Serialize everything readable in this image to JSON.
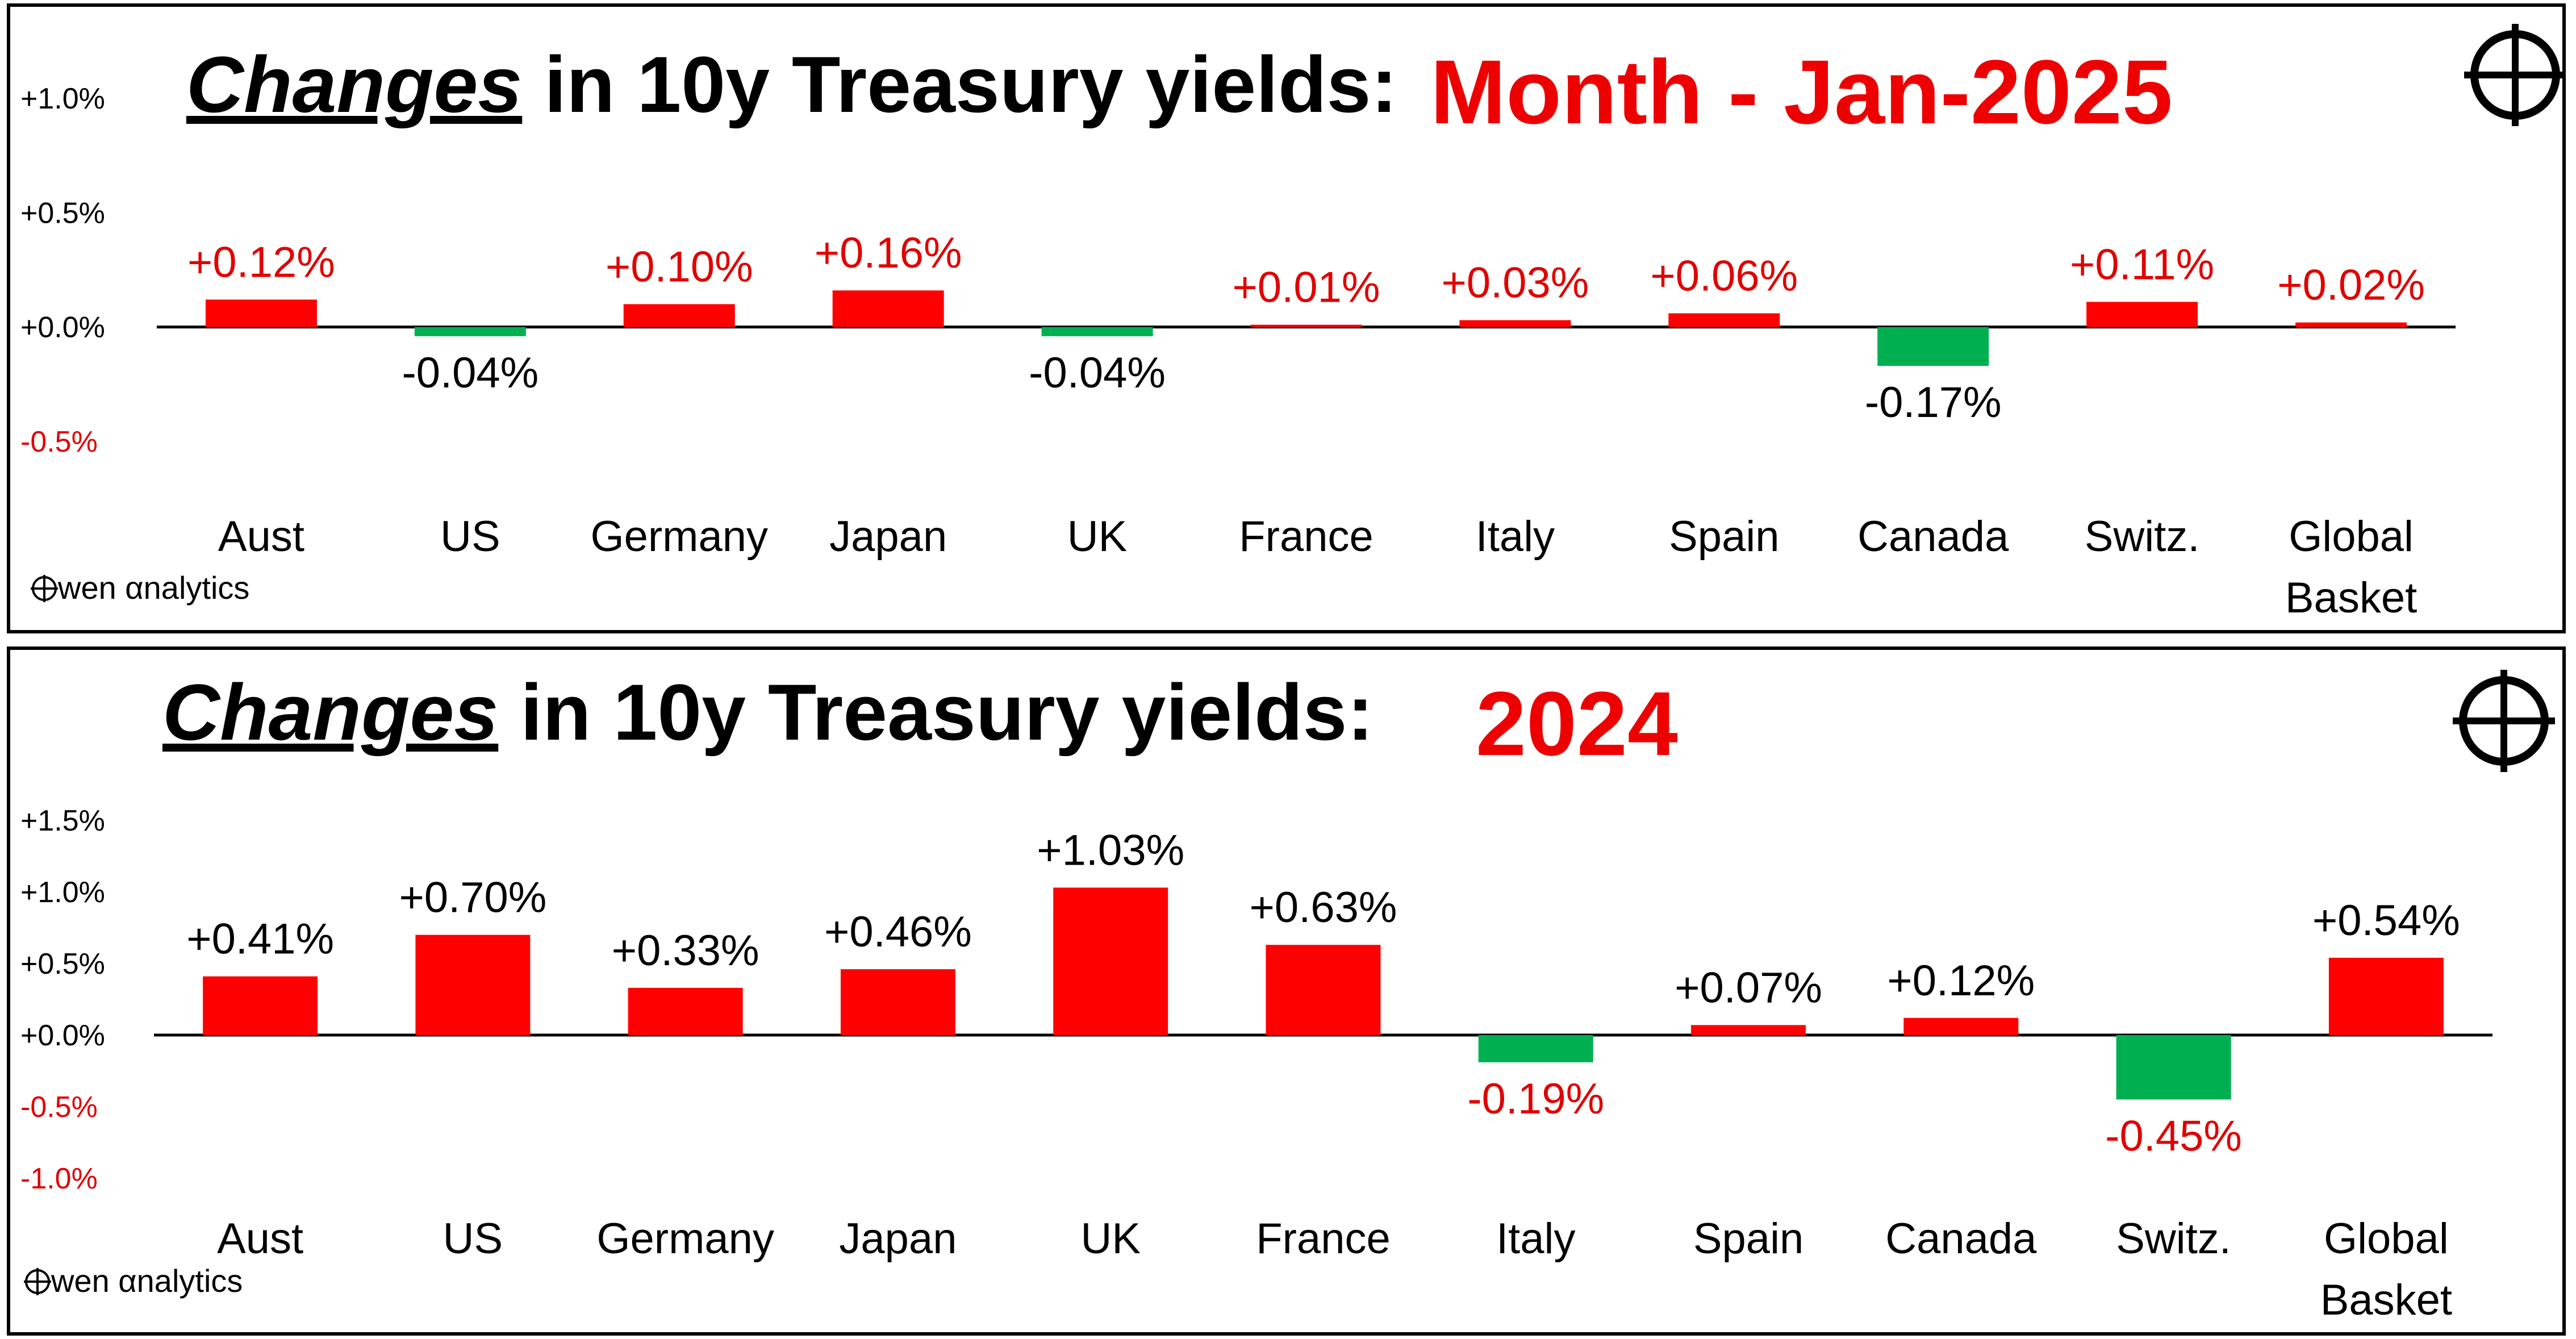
{
  "colors": {
    "positive": "#ff0000",
    "negative": "#00b050",
    "red_text": "#e00000",
    "axis": "#000000"
  },
  "brand": {
    "logo_icon": "crosshair-icon",
    "text": "wen αnalytics"
  },
  "chart_data": [
    {
      "type": "bar",
      "title_prefix": "Changes",
      "title_rest": " in 10y Treasury yields:",
      "period_label": "Month -  Jan-2025",
      "categories": [
        "Aust",
        "US",
        "Germany",
        "Japan",
        "UK",
        "France",
        "Italy",
        "Spain",
        "Canada",
        "Switz.",
        [
          "Global",
          "Basket"
        ]
      ],
      "values": [
        0.12,
        -0.04,
        0.1,
        0.16,
        -0.04,
        0.01,
        0.03,
        0.06,
        -0.17,
        0.11,
        0.02
      ],
      "data_labels": [
        "+0.12%",
        "-0.04%",
        "+0.10%",
        "+0.16%",
        "-0.04%",
        "+0.01%",
        "+0.03%",
        "+0.06%",
        "-0.17%",
        "+0.11%",
        "+0.02%"
      ],
      "label_colors": [
        "red",
        "black",
        "red",
        "red",
        "black",
        "red",
        "red",
        "red",
        "black",
        "red",
        "red"
      ],
      "y_ticks": [
        "+1.0%",
        "+0.5%",
        "+0.0%",
        "-0.5%"
      ],
      "y_tick_values": [
        1.0,
        0.5,
        0.0,
        -0.5
      ],
      "y_tick_colors": [
        "black",
        "black",
        "black",
        "red"
      ],
      "ylim": [
        -0.5,
        1.0
      ],
      "grid": false,
      "legend": "none"
    },
    {
      "type": "bar",
      "title_prefix": "Changes",
      "title_rest": " in 10y Treasury yields:",
      "period_label": "2024",
      "categories": [
        "Aust",
        "US",
        "Germany",
        "Japan",
        "UK",
        "France",
        "Italy",
        "Spain",
        "Canada",
        "Switz.",
        [
          "Global",
          "Basket"
        ]
      ],
      "values": [
        0.41,
        0.7,
        0.33,
        0.46,
        1.03,
        0.63,
        -0.19,
        0.07,
        0.12,
        -0.45,
        0.54
      ],
      "data_labels": [
        "+0.41%",
        "+0.70%",
        "+0.33%",
        "+0.46%",
        "+1.03%",
        "+0.63%",
        "-0.19%",
        "+0.07%",
        "+0.12%",
        "-0.45%",
        "+0.54%"
      ],
      "label_colors": [
        "black",
        "black",
        "black",
        "black",
        "black",
        "black",
        "red",
        "black",
        "black",
        "red",
        "black"
      ],
      "y_ticks": [
        "+1.5%",
        "+1.0%",
        "+0.5%",
        "+0.0%",
        "-0.5%",
        "-1.0%"
      ],
      "y_tick_values": [
        1.5,
        1.0,
        0.5,
        0.0,
        -0.5,
        -1.0
      ],
      "y_tick_colors": [
        "black",
        "black",
        "black",
        "black",
        "red",
        "red"
      ],
      "ylim": [
        -1.0,
        1.5
      ],
      "grid": false,
      "legend": "none"
    }
  ]
}
